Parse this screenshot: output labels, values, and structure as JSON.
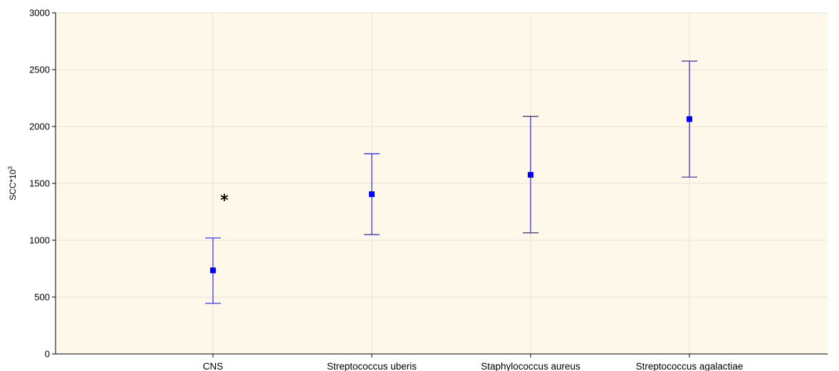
{
  "chart_data": {
    "type": "scatter",
    "subtype": "mean-with-error-bars",
    "title": "",
    "xlabel": "",
    "ylabel": {
      "base": "SCC*10",
      "superscript": "3"
    },
    "ylim": [
      0,
      3000
    ],
    "yticks": [
      0,
      500,
      1000,
      1500,
      2000,
      2500,
      3000
    ],
    "categories": [
      "CNS",
      "Streptococcus uberis",
      "Staphylococcus aureus",
      "Streptococcus agalactiae"
    ],
    "series": [
      {
        "means": [
          735,
          1405,
          1575,
          2065
        ],
        "lower": [
          445,
          1050,
          1065,
          1555
        ],
        "upper": [
          1020,
          1760,
          2090,
          2575
        ]
      }
    ],
    "annotations": [
      {
        "text": "*",
        "category": "CNS",
        "y": 1380
      }
    ],
    "grid": true,
    "legend": "none",
    "colors": {
      "plot_background": "#fdf8ea",
      "series": "#0000ff",
      "error_bar": "#2828d4",
      "grid": "#e6e2d6",
      "axis": "#000000"
    }
  }
}
